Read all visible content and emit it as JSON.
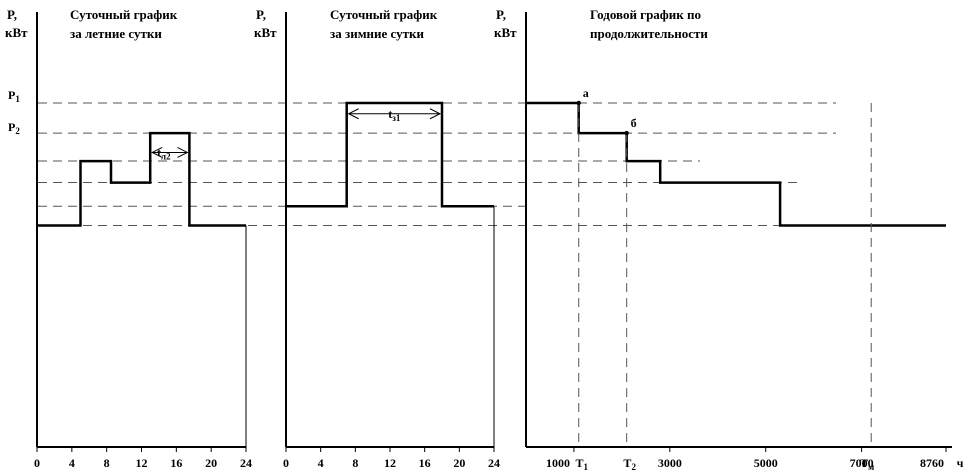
{
  "colors": {
    "line": "#000000",
    "dash": "#555555",
    "background": "#ffffff"
  },
  "level_labels": {
    "p1": "P1",
    "p2": "P2"
  },
  "annotations": {
    "point_a": "а",
    "point_b": "б"
  },
  "panels": [
    {
      "type": "step",
      "title": [
        "Суточный график",
        "за летние сутки"
      ],
      "ylabel": [
        "P,",
        "кВт"
      ],
      "xlim": [
        0,
        24
      ],
      "xticks": [
        "0",
        "4",
        "8",
        "12",
        "16",
        "20",
        "24"
      ],
      "interval_label": {
        "main": "t",
        "sub": "л2"
      }
    },
    {
      "type": "step",
      "title": [
        "Суточный график",
        "за зимние сутки"
      ],
      "ylabel": [
        "P,",
        "кВт"
      ],
      "xlim": [
        0,
        24
      ],
      "xticks": [
        "0",
        "4",
        "8",
        "12",
        "16",
        "20",
        "24"
      ],
      "interval_label": {
        "main": "t",
        "sub": "з1"
      }
    },
    {
      "type": "step",
      "title": [
        "Годовой график по",
        "продолжительности"
      ],
      "ylabel": [
        "P,",
        "кВт"
      ],
      "xlim": [
        0,
        8760
      ],
      "xticks": [
        {
          "v": 1000,
          "t": "1000"
        },
        {
          "v": 3000,
          "t": "3000"
        },
        {
          "v": 5000,
          "t": "5000"
        },
        {
          "v": 7000,
          "t": "7000"
        },
        {
          "v": 8760,
          "t": "8760"
        }
      ],
      "xunit": "ч",
      "special_ticks": [
        {
          "v": 1100,
          "main": "T",
          "sub": "1"
        },
        {
          "v": 2100,
          "main": "T",
          "sub": "2"
        },
        {
          "v": 7200,
          "main": "T",
          "sub": "м"
        }
      ]
    }
  ],
  "chart_data": [
    {
      "type": "line",
      "title": "Суточный график за летние сутки",
      "xlabel": "",
      "ylabel": "P, кВт",
      "xlim": [
        0,
        24
      ],
      "ylim": [
        0,
        1
      ],
      "levels": {
        "L1": 0.515,
        "L2": 0.56,
        "L3": 0.615,
        "L4": 0.665,
        "P2": 0.73
      },
      "series": [
        {
          "x": [
            0,
            5,
            5,
            8.5,
            8.5,
            13,
            13,
            17.5,
            17.5,
            24
          ],
          "y": [
            0.515,
            0.515,
            0.665,
            0.665,
            0.615,
            0.615,
            0.73,
            0.73,
            0.515,
            0.515
          ]
        }
      ]
    },
    {
      "type": "line",
      "title": "Суточный график за зимние сутки",
      "xlabel": "",
      "ylabel": "P, кВт",
      "xlim": [
        0,
        24
      ],
      "ylim": [
        0,
        1
      ],
      "levels": {
        "L2": 0.56,
        "P1": 0.8
      },
      "series": [
        {
          "x": [
            0,
            7,
            7,
            18,
            18,
            24
          ],
          "y": [
            0.56,
            0.56,
            0.8,
            0.8,
            0.56,
            0.56
          ]
        }
      ]
    },
    {
      "type": "line",
      "title": "Годовой график по продолжительности",
      "xlabel": "ч",
      "ylabel": "P, кВт",
      "xlim": [
        0,
        8760
      ],
      "ylim": [
        0,
        1
      ],
      "levels": {
        "P1": 0.8,
        "P2": 0.73,
        "L4": 0.665,
        "L3": 0.615,
        "L1": 0.515
      },
      "series": [
        {
          "x": [
            0,
            1100,
            1100,
            2100,
            2100,
            2800,
            2800,
            5300,
            5300,
            8760
          ],
          "y": [
            0.8,
            0.8,
            0.73,
            0.73,
            0.665,
            0.665,
            0.615,
            0.615,
            0.515,
            0.515
          ]
        }
      ],
      "points": [
        {
          "label": "а",
          "x": 1100,
          "y": 0.8
        },
        {
          "label": "б",
          "x": 2100,
          "y": 0.73
        }
      ],
      "markers": {
        "T1": 1100,
        "T2": 2100,
        "Tм": 7200
      }
    }
  ]
}
